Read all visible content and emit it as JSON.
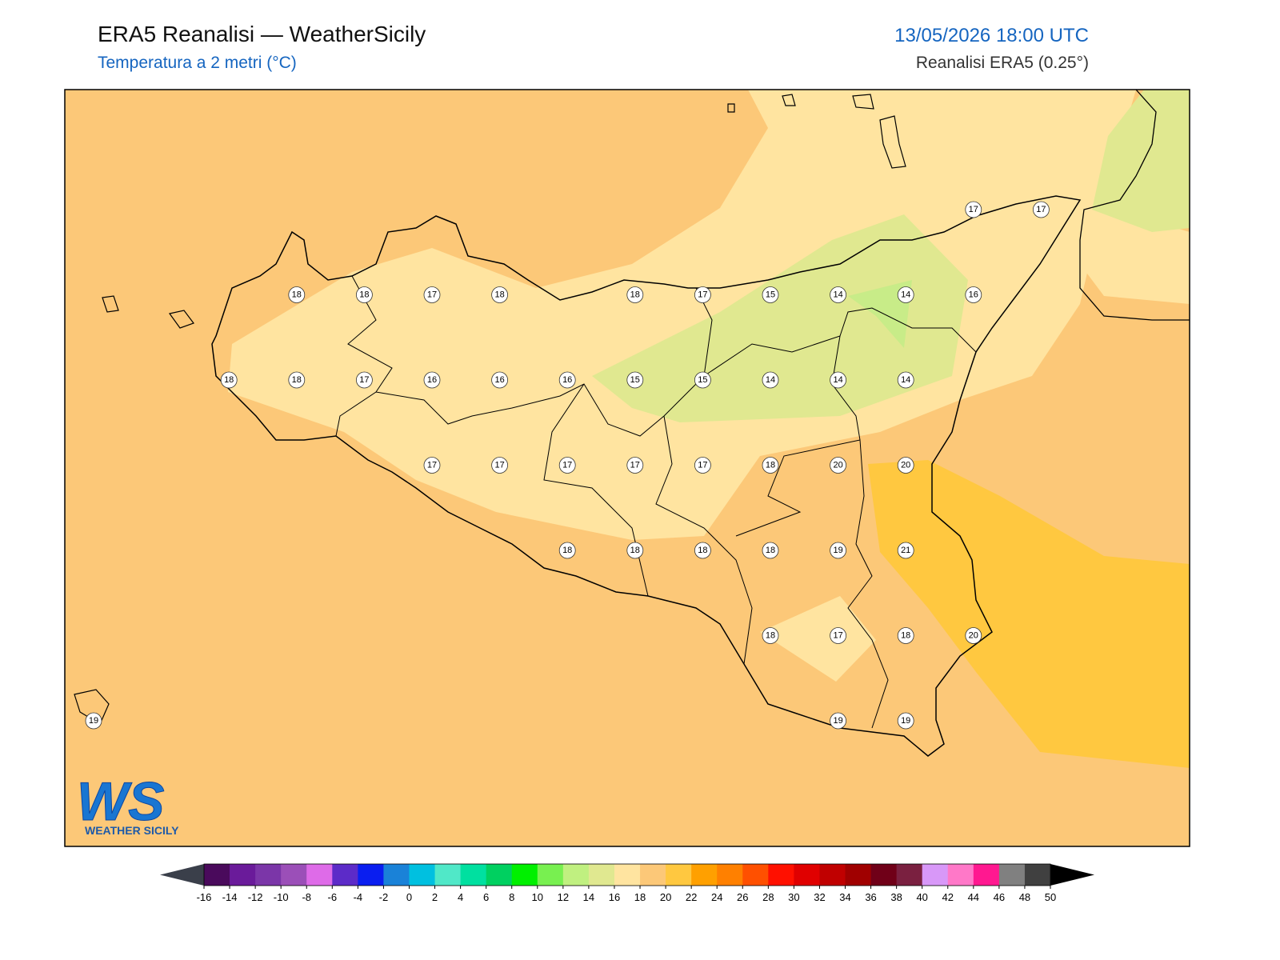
{
  "header": {
    "title": "ERA5 Reanalisi — WeatherSicily",
    "subtitle": "Temperatura a 2 metri (°C)",
    "datetime": "13/05/2026 18:00 UTC",
    "source": "Reanalisi ERA5 (0.25°)"
  },
  "logo": {
    "letters": "WS",
    "name": "WEATHER SICILY"
  },
  "temperature_grid": {
    "rows": [
      [
        null,
        null,
        null,
        null,
        null,
        null,
        null,
        null,
        null,
        null,
        null,
        null,
        null,
        17,
        17
      ],
      [
        null,
        null,
        null,
        18,
        18,
        17,
        18,
        null,
        18,
        17,
        15,
        14,
        14,
        16,
        null
      ],
      [
        null,
        null,
        18,
        18,
        17,
        16,
        16,
        16,
        15,
        15,
        14,
        14,
        14,
        null,
        null
      ],
      [
        null,
        null,
        null,
        null,
        null,
        17,
        17,
        17,
        17,
        17,
        18,
        20,
        20,
        null,
        null
      ],
      [
        null,
        null,
        null,
        null,
        null,
        null,
        null,
        18,
        18,
        18,
        18,
        19,
        21,
        null,
        null
      ],
      [
        null,
        null,
        null,
        null,
        null,
        null,
        null,
        null,
        null,
        null,
        18,
        17,
        18,
        20,
        null
      ],
      [
        19,
        null,
        null,
        null,
        null,
        null,
        null,
        null,
        null,
        null,
        null,
        19,
        19,
        null,
        null
      ]
    ]
  },
  "colorbar": {
    "ticks": [
      -16,
      -14,
      -12,
      -10,
      -8,
      -6,
      -4,
      -2,
      0,
      2,
      4,
      6,
      8,
      10,
      12,
      14,
      16,
      18,
      20,
      22,
      24,
      26,
      28,
      30,
      32,
      34,
      36,
      38,
      40,
      42,
      44,
      46,
      48,
      50
    ],
    "colors": [
      "#4a0a5c",
      "#6a1b9a",
      "#7b36a8",
      "#9b4fb8",
      "#de6be8",
      "#5c2bc8",
      "#0a1ef0",
      "#1a82d8",
      "#00c0e0",
      "#50e8c8",
      "#00e0a0",
      "#00d060",
      "#00f000",
      "#78f050",
      "#c0f080",
      "#e0e890",
      "#ffe4a0",
      "#fcc878",
      "#ffc840",
      "#ffa000",
      "#ff8000",
      "#ff5000",
      "#ff1000",
      "#e00000",
      "#c00000",
      "#a00000",
      "#700018",
      "#7a2040",
      "#d898f8",
      "#ff78c8",
      "#ff1890",
      "#808080",
      "#404040"
    ],
    "under_color": "#3a3f4a",
    "over_color": "#000000"
  }
}
